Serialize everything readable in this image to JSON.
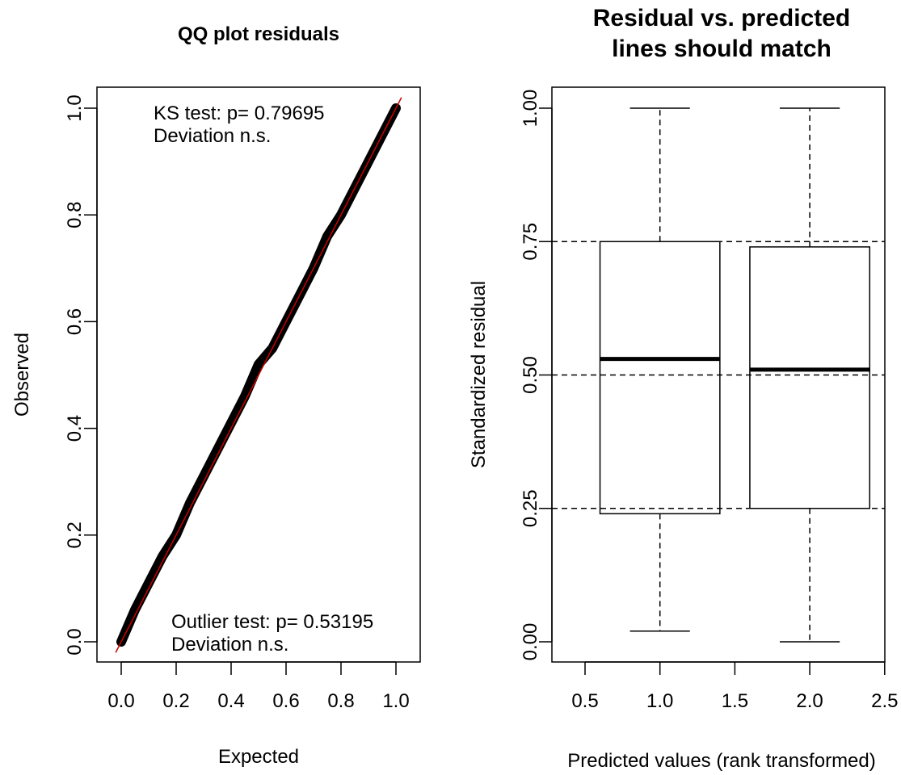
{
  "chart_data": [
    {
      "type": "scatter",
      "title": "QQ plot residuals",
      "xlabel": "Expected",
      "ylabel": "Observed",
      "xlim": [
        0,
        1
      ],
      "ylim": [
        0,
        1
      ],
      "x_ticks": [
        0.0,
        0.2,
        0.4,
        0.6,
        0.8,
        1.0
      ],
      "y_ticks": [
        0.0,
        0.2,
        0.4,
        0.6,
        0.8,
        1.0
      ],
      "x_tick_labels": [
        "0.0",
        "0.2",
        "0.4",
        "0.6",
        "0.8",
        "1.0"
      ],
      "y_tick_labels": [
        "0.0",
        "0.2",
        "0.4",
        "0.6",
        "0.8",
        "1.0"
      ],
      "series": [
        {
          "x": [
            0.0,
            0.05,
            0.1,
            0.15,
            0.2,
            0.25,
            0.3,
            0.35,
            0.4,
            0.45,
            0.5,
            0.55,
            0.6,
            0.65,
            0.7,
            0.75,
            0.8,
            0.85,
            0.9,
            0.95,
            1.0
          ],
          "values": [
            0.0,
            0.06,
            0.11,
            0.16,
            0.2,
            0.26,
            0.31,
            0.36,
            0.41,
            0.46,
            0.52,
            0.55,
            0.6,
            0.65,
            0.7,
            0.76,
            0.8,
            0.85,
            0.9,
            0.95,
            1.0
          ]
        }
      ],
      "reference_line": {
        "slope": 1,
        "intercept": 0,
        "color": "#cc0000"
      },
      "annotations": [
        {
          "lines": [
            "KS test: p= 0.79695",
            "Deviation  n.s."
          ],
          "position": "top-left"
        },
        {
          "lines": [
            "Outlier test: p= 0.53195",
            "Deviation  n.s."
          ],
          "position": "bottom-right"
        }
      ],
      "point_color": "#000000",
      "grid": false
    },
    {
      "type": "box",
      "title_lines": [
        "Residual vs. predicted",
        "lines should match"
      ],
      "xlabel": "Predicted values (rank transformed)",
      "ylabel": "Standardized residual",
      "xlim": [
        0.5,
        2.5
      ],
      "ylim": [
        0,
        1
      ],
      "x_ticks": [
        0.5,
        1.0,
        1.5,
        2.0,
        2.5
      ],
      "y_ticks": [
        0.0,
        0.25,
        0.5,
        0.75,
        1.0
      ],
      "x_tick_labels": [
        "0.5",
        "1.0",
        "1.5",
        "2.0",
        "2.5"
      ],
      "y_tick_labels": [
        "0.00",
        "0.25",
        "0.50",
        "0.75",
        "1.00"
      ],
      "boxes": [
        {
          "x": 1,
          "min": 0.02,
          "q1": 0.24,
          "median": 0.53,
          "q3": 0.75,
          "max": 1.0
        },
        {
          "x": 2,
          "min": 0.0,
          "q1": 0.25,
          "median": 0.51,
          "q3": 0.74,
          "max": 1.0
        }
      ],
      "reference_lines": [
        0.25,
        0.5,
        0.75
      ],
      "grid": false
    }
  ]
}
